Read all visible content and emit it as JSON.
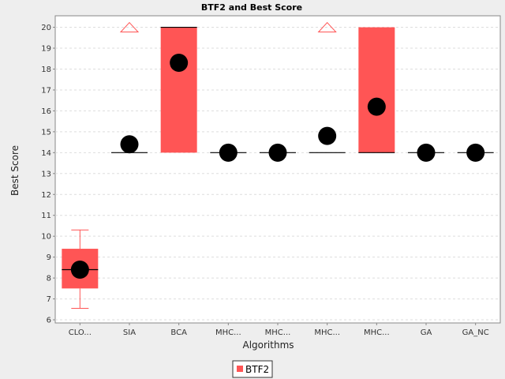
{
  "chart_data": {
    "type": "boxplot",
    "title": "BTF2 and Best Score",
    "xlabel": "Algorithms",
    "ylabel": "Best Score",
    "categories": [
      "CLO...",
      "SIA",
      "BCA",
      "MHC...",
      "MHC...",
      "MHC...",
      "MHC...",
      "GA",
      "GA_NC"
    ],
    "ylim": [
      5.85,
      20.55
    ],
    "yticks": [
      6,
      7,
      8,
      9,
      10,
      11,
      12,
      13,
      14,
      15,
      16,
      17,
      18,
      19,
      20
    ],
    "grid": true,
    "legend_position": "bottom-center",
    "series": [
      {
        "name": "BTF2",
        "color": "#ff5555",
        "boxes": [
          {
            "q1": 7.5,
            "median": 8.4,
            "q3": 9.4,
            "whisker_low": 6.55,
            "whisker_high": 10.3,
            "mean": 8.4,
            "outlier_high": null
          },
          {
            "q1": 14.0,
            "median": 14.0,
            "q3": 14.0,
            "whisker_low": 14.0,
            "whisker_high": 14.0,
            "mean": 14.4,
            "outlier_high": 20.0
          },
          {
            "q1": 14.0,
            "median": 20.0,
            "q3": 20.0,
            "whisker_low": 14.0,
            "whisker_high": 20.0,
            "mean": 18.3,
            "outlier_high": null
          },
          {
            "q1": 14.0,
            "median": 14.0,
            "q3": 14.0,
            "whisker_low": 14.0,
            "whisker_high": 14.0,
            "mean": 14.0,
            "outlier_high": null
          },
          {
            "q1": 14.0,
            "median": 14.0,
            "q3": 14.0,
            "whisker_low": 14.0,
            "whisker_high": 14.0,
            "mean": 14.0,
            "outlier_high": null
          },
          {
            "q1": 14.0,
            "median": 14.0,
            "q3": 14.0,
            "whisker_low": 14.0,
            "whisker_high": 14.0,
            "mean": 14.8,
            "outlier_high": 20.0
          },
          {
            "q1": 14.0,
            "median": 14.0,
            "q3": 20.0,
            "whisker_low": 14.0,
            "whisker_high": 20.0,
            "mean": 16.2,
            "outlier_high": null
          },
          {
            "q1": 14.0,
            "median": 14.0,
            "q3": 14.0,
            "whisker_low": 14.0,
            "whisker_high": 14.0,
            "mean": 14.0,
            "outlier_high": null
          },
          {
            "q1": 14.0,
            "median": 14.0,
            "q3": 14.0,
            "whisker_low": 14.0,
            "whisker_high": 14.0,
            "mean": 14.0,
            "outlier_high": null
          }
        ]
      }
    ]
  }
}
